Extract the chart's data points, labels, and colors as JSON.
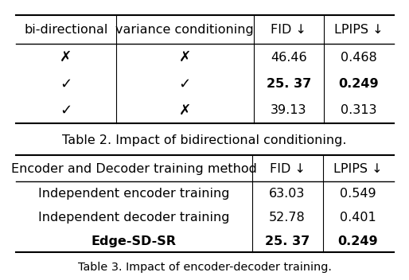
{
  "table1": {
    "headers": [
      "bi-directional",
      "variance conditioning",
      "FID ↓",
      "LPIPS ↓"
    ],
    "rows": [
      [
        "✗",
        "✗",
        "46.46",
        "0.468"
      ],
      [
        "✓",
        "✓",
        "25. 37",
        "0.249"
      ],
      [
        "✓",
        "✗",
        "39.13",
        "0.313"
      ]
    ],
    "bold_rows": [
      1
    ]
  },
  "table2_title": "Table 2. Impact of bidirectional conditioning.",
  "table2": {
    "headers": [
      "Encoder and Decoder training method",
      "FID ↓",
      "LPIPS ↓"
    ],
    "rows": [
      [
        "Independent encoder training",
        "63.03",
        "0.549"
      ],
      [
        "Independent decoder training",
        "52.78",
        "0.401"
      ],
      [
        "Edge-SD-SR",
        "25. 37",
        "0.249"
      ]
    ],
    "bold_rows": [
      2
    ]
  },
  "caption": "Table 3. Impact of encoder-decoder training.",
  "background_color": "#ffffff",
  "text_color": "#000000",
  "font_size": 11.5
}
